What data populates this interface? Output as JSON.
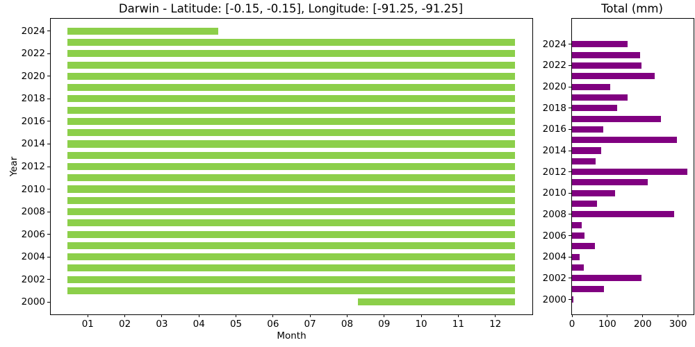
{
  "chart_data": [
    {
      "type": "bar",
      "subtype": "horizontal-coverage-span",
      "title": "Darwin - Latitude: [-0.15, -0.15], Longitude: [-91.25, -91.25]",
      "xlabel": "Month",
      "ylabel": "Year",
      "xlim": [
        0,
        13
      ],
      "ylim": [
        1998.9,
        2025.1
      ],
      "grid": false,
      "legend": "none",
      "bar_color": "#8ccf4a",
      "bar_height_data": 0.62,
      "x_tick_values": [
        1,
        2,
        3,
        4,
        5,
        6,
        7,
        8,
        9,
        10,
        11,
        12
      ],
      "x_tick_labels": [
        "01",
        "02",
        "03",
        "04",
        "05",
        "06",
        "07",
        "08",
        "09",
        "10",
        "11",
        "12"
      ],
      "y_tick_values": [
        2024,
        2022,
        2020,
        2018,
        2016,
        2014,
        2012,
        2010,
        2008,
        2006,
        2004,
        2002,
        2000
      ],
      "y_tick_labels": [
        "2024",
        "2022",
        "2020",
        "2018",
        "2016",
        "2014",
        "2012",
        "2010",
        "2008",
        "2006",
        "2004",
        "2002",
        "2000"
      ],
      "bars": [
        {
          "year": 2000,
          "start": 8.3,
          "end": 12.53
        },
        {
          "year": 2001,
          "start": 0.45,
          "end": 12.53
        },
        {
          "year": 2002,
          "start": 0.45,
          "end": 12.53
        },
        {
          "year": 2003,
          "start": 0.45,
          "end": 12.53
        },
        {
          "year": 2004,
          "start": 0.45,
          "end": 12.53
        },
        {
          "year": 2005,
          "start": 0.45,
          "end": 12.53
        },
        {
          "year": 2006,
          "start": 0.45,
          "end": 12.53
        },
        {
          "year": 2007,
          "start": 0.45,
          "end": 12.53
        },
        {
          "year": 2008,
          "start": 0.45,
          "end": 12.53
        },
        {
          "year": 2009,
          "start": 0.45,
          "end": 12.53
        },
        {
          "year": 2010,
          "start": 0.45,
          "end": 12.53
        },
        {
          "year": 2011,
          "start": 0.45,
          "end": 12.53
        },
        {
          "year": 2012,
          "start": 0.45,
          "end": 12.53
        },
        {
          "year": 2013,
          "start": 0.45,
          "end": 12.53
        },
        {
          "year": 2014,
          "start": 0.45,
          "end": 12.53
        },
        {
          "year": 2015,
          "start": 0.45,
          "end": 12.53
        },
        {
          "year": 2016,
          "start": 0.45,
          "end": 12.53
        },
        {
          "year": 2017,
          "start": 0.45,
          "end": 12.53
        },
        {
          "year": 2018,
          "start": 0.45,
          "end": 12.53
        },
        {
          "year": 2019,
          "start": 0.45,
          "end": 12.53
        },
        {
          "year": 2020,
          "start": 0.45,
          "end": 12.53
        },
        {
          "year": 2021,
          "start": 0.45,
          "end": 12.53
        },
        {
          "year": 2022,
          "start": 0.45,
          "end": 12.53
        },
        {
          "year": 2023,
          "start": 0.45,
          "end": 12.53
        },
        {
          "year": 2024,
          "start": 0.45,
          "end": 4.52
        }
      ]
    },
    {
      "type": "bar",
      "subtype": "horizontal-value",
      "title": "Total (mm)",
      "xlabel": "",
      "ylabel": "",
      "xlim": [
        0,
        344
      ],
      "ylim": [
        1998.6,
        2026.4
      ],
      "grid": false,
      "legend": "none",
      "bar_color": "#800080",
      "bar_height_data": 0.59,
      "x_tick_values": [
        0,
        100,
        200,
        300
      ],
      "x_tick_labels": [
        "0",
        "100",
        "200",
        "300"
      ],
      "y_tick_values": [
        2024,
        2022,
        2020,
        2018,
        2016,
        2014,
        2012,
        2010,
        2008,
        2006,
        2004,
        2002,
        2000
      ],
      "y_tick_labels": [
        "2024",
        "2022",
        "2020",
        "2018",
        "2016",
        "2014",
        "2012",
        "2010",
        "2008",
        "2006",
        "2004",
        "2002",
        "2000"
      ],
      "bars": [
        {
          "year": 2000,
          "value": 3
        },
        {
          "year": 2001,
          "value": 90
        },
        {
          "year": 2002,
          "value": 197
        },
        {
          "year": 2003,
          "value": 33
        },
        {
          "year": 2004,
          "value": 22
        },
        {
          "year": 2005,
          "value": 64
        },
        {
          "year": 2006,
          "value": 35
        },
        {
          "year": 2007,
          "value": 28
        },
        {
          "year": 2008,
          "value": 289
        },
        {
          "year": 2009,
          "value": 71
        },
        {
          "year": 2010,
          "value": 122
        },
        {
          "year": 2011,
          "value": 215
        },
        {
          "year": 2012,
          "value": 327
        },
        {
          "year": 2013,
          "value": 66
        },
        {
          "year": 2014,
          "value": 83
        },
        {
          "year": 2015,
          "value": 297
        },
        {
          "year": 2016,
          "value": 88
        },
        {
          "year": 2017,
          "value": 252
        },
        {
          "year": 2018,
          "value": 128
        },
        {
          "year": 2019,
          "value": 158
        },
        {
          "year": 2020,
          "value": 109
        },
        {
          "year": 2021,
          "value": 233
        },
        {
          "year": 2022,
          "value": 197
        },
        {
          "year": 2023,
          "value": 193
        },
        {
          "year": 2024,
          "value": 158
        }
      ]
    }
  ]
}
